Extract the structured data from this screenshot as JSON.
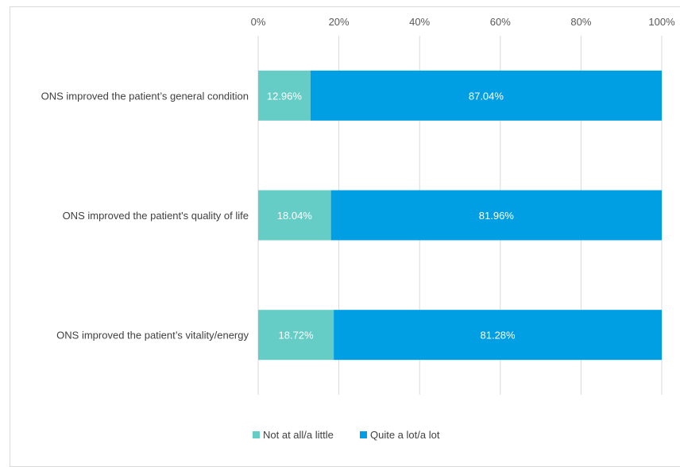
{
  "chart_data": {
    "type": "bar",
    "orientation": "horizontal",
    "stacked": "percent",
    "categories": [
      "ONS improved the patient’s general condition",
      "ONS improved the patient's quality of life",
      "ONS improved the patient’s vitality/energy"
    ],
    "series": [
      {
        "name": "Not at all/a little",
        "values": [
          12.96,
          18.04,
          18.72
        ],
        "labels": [
          "12.96%",
          "18.04%",
          "18.72%"
        ],
        "color": "#66CCC6"
      },
      {
        "name": "Quite a lot/a lot",
        "values": [
          87.04,
          81.96,
          81.28
        ],
        "labels": [
          "87.04%",
          "81.96%",
          "81.28%"
        ],
        "color": "#009FE3"
      }
    ],
    "x_ticks": [
      "0%",
      "20%",
      "40%",
      "60%",
      "80%",
      "100%"
    ],
    "xlim": [
      0,
      100
    ],
    "grid": true,
    "legend": "bottom",
    "xaxis_position": "top"
  }
}
